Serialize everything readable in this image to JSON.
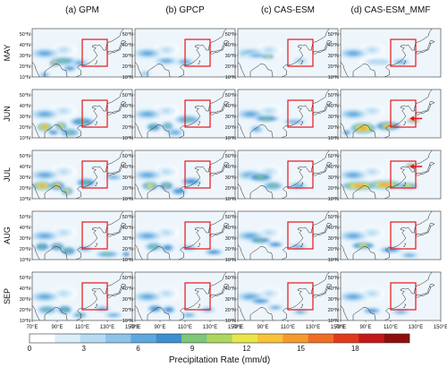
{
  "chart_data": {
    "type": "heatmap",
    "column_titles": [
      "(a) GPM",
      "(b) GPCP",
      "(c) CAS-ESM",
      "(d) CAS-ESM_MMF"
    ],
    "row_labels": [
      "MAY",
      "JUN",
      "JUL",
      "AUG",
      "SEP"
    ],
    "lat_ticks": [
      "50°N",
      "40°N",
      "30°N",
      "20°N",
      "10°N"
    ],
    "lon_ticks": [
      "70°E",
      "90°E",
      "110°E",
      "130°E",
      "150°E"
    ],
    "colorbar": {
      "label": "Precipitation Rate (mm/d)",
      "ticks": [
        0,
        3,
        6,
        9,
        12,
        15,
        18
      ],
      "range": [
        0,
        21
      ],
      "levels": [
        0,
        1.5,
        3,
        4.5,
        6,
        7.5,
        9,
        10.5,
        12,
        13.5,
        15,
        16.5,
        18,
        19.5,
        21
      ],
      "colors": [
        "#ffffff",
        "#dceefa",
        "#b7dbf3",
        "#8cc3ea",
        "#5ea8df",
        "#3d8fcf",
        "#7dc67a",
        "#aed65d",
        "#e8e649",
        "#f8c23a",
        "#f59a2d",
        "#ee6d23",
        "#e03a1c",
        "#c41818",
        "#8e0e0e"
      ]
    },
    "lat_range": [
      10,
      55
    ],
    "lon_range": [
      70,
      150
    ],
    "highlight_box": {
      "lon": [
        110,
        130
      ],
      "lat": [
        20,
        45
      ],
      "color": "#e8141a"
    },
    "arrows": {
      "JUN": "(d) CAS-ESM_MMF",
      "JUL": "(d) CAS-ESM_MMF"
    }
  }
}
